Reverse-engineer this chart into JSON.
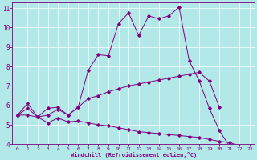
{
  "xlabel": "Windchill (Refroidissement éolien,°C)",
  "background_color": "#b2e8e8",
  "grid_color": "#ffffff",
  "line_color": "#800080",
  "xlim": [
    -0.5,
    23.5
  ],
  "ylim": [
    4,
    11.3
  ],
  "xticks": [
    0,
    1,
    2,
    3,
    4,
    5,
    6,
    7,
    8,
    9,
    10,
    11,
    12,
    13,
    14,
    15,
    16,
    17,
    18,
    19,
    20,
    21,
    22,
    23
  ],
  "yticks": [
    4,
    5,
    6,
    7,
    8,
    9,
    10,
    11
  ],
  "line1_y": [
    5.5,
    6.1,
    5.4,
    5.85,
    5.9,
    5.5,
    5.9,
    7.8,
    8.6,
    8.55,
    10.2,
    10.75,
    9.6,
    10.6,
    10.45,
    10.6,
    11.05,
    8.3,
    7.25,
    5.85,
    4.7,
    3.9,
    null,
    null
  ],
  "line2_y": [
    5.5,
    5.85,
    5.4,
    5.5,
    5.8,
    5.5,
    5.9,
    6.35,
    6.5,
    6.7,
    6.85,
    7.0,
    7.1,
    7.2,
    7.3,
    7.4,
    7.5,
    7.6,
    7.7,
    7.25,
    5.9,
    null,
    null,
    null
  ],
  "line3_y": [
    5.5,
    5.5,
    5.4,
    5.1,
    5.35,
    5.15,
    5.2,
    5.1,
    5.0,
    4.95,
    4.85,
    4.75,
    4.65,
    4.6,
    4.55,
    4.5,
    4.45,
    4.4,
    4.35,
    4.25,
    4.15,
    4.1,
    3.9,
    null
  ]
}
